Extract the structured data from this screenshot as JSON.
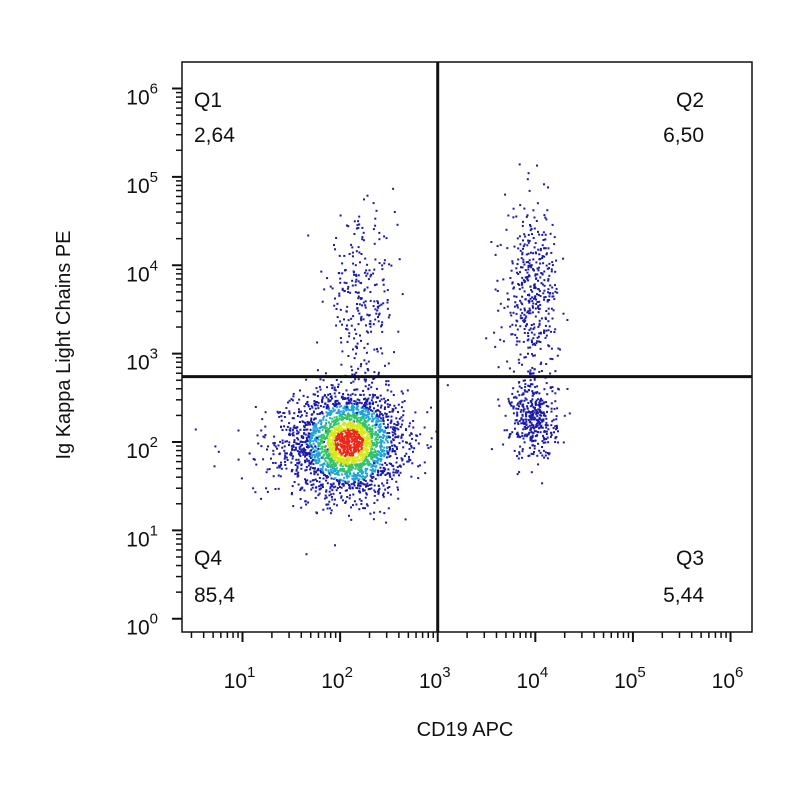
{
  "chart_data": {
    "type": "scatter",
    "subtype": "flow-cytometry-density-dot-plot",
    "xlabel": "CD19 APC",
    "ylabel": "Ig Kappa Light Chains PE",
    "x_scale": "log",
    "y_scale": "log",
    "x_ticks": [
      {
        "base": "10",
        "exp": "1"
      },
      {
        "base": "10",
        "exp": "2"
      },
      {
        "base": "10",
        "exp": "3"
      },
      {
        "base": "10",
        "exp": "4"
      },
      {
        "base": "10",
        "exp": "5"
      },
      {
        "base": "10",
        "exp": "6"
      }
    ],
    "y_ticks": [
      {
        "base": "10",
        "exp": "0"
      },
      {
        "base": "10",
        "exp": "1"
      },
      {
        "base": "10",
        "exp": "2"
      },
      {
        "base": "10",
        "exp": "3"
      },
      {
        "base": "10",
        "exp": "4"
      },
      {
        "base": "10",
        "exp": "5"
      },
      {
        "base": "10",
        "exp": "6"
      }
    ],
    "gate": {
      "x": 1000,
      "y": 550
    },
    "quadrants": [
      {
        "name": "Q1",
        "value": "2,64",
        "position": "top-left"
      },
      {
        "name": "Q2",
        "value": "6,50",
        "position": "top-right"
      },
      {
        "name": "Q3",
        "value": "5,44",
        "position": "bottom-right"
      },
      {
        "name": "Q4",
        "value": "85,4",
        "position": "bottom-left"
      }
    ],
    "populations": [
      {
        "description": "main population",
        "x_center": 120,
        "y_center": 100,
        "x_spread_decades": 0.28,
        "y_spread_decades": 0.3,
        "relative_size": 2600,
        "dense": true
      },
      {
        "description": "lower-left sparse tail",
        "x_center": 30,
        "y_center": 90,
        "x_spread_decades": 0.35,
        "y_spread_decades": 0.25,
        "relative_size": 120,
        "dense": false
      },
      {
        "description": "Q1 upper cluster",
        "x_center": 160,
        "y_center": 4000,
        "x_spread_decades": 0.18,
        "y_spread_decades": 0.45,
        "relative_size": 260,
        "dense": false
      },
      {
        "description": "Q2 upper cluster",
        "x_center": 9000,
        "y_center": 4500,
        "x_spread_decades": 0.14,
        "y_spread_decades": 0.5,
        "relative_size": 450,
        "dense": false
      },
      {
        "description": "Q3 lower cluster",
        "x_center": 9500,
        "y_center": 180,
        "x_spread_decades": 0.12,
        "y_spread_decades": 0.22,
        "relative_size": 380,
        "dense": false
      }
    ],
    "colors": {
      "low": "#1a1aa8",
      "mid_low": "#1fa3d8",
      "mid": "#31c46a",
      "mid_high": "#d8e81a",
      "high": "#e8281a",
      "frame": "#111111"
    },
    "grid": false,
    "legend": "none"
  }
}
